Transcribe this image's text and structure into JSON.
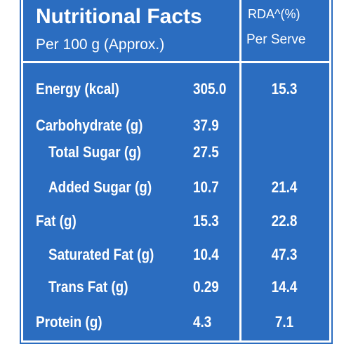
{
  "header": {
    "title": "Nutritional Facts",
    "subtitle": "Per 100 g (Approx.)",
    "rda_title": "RDA^(%)",
    "rda_subtitle": "Per Serve"
  },
  "table": {
    "rows": [
      {
        "name": "Energy (kcal)",
        "value": "305.0",
        "rda": "15.3"
      },
      {
        "name": "Carbohydrate (g)",
        "value": "37.9"
      },
      {
        "name": "Total Sugar (g)",
        "value": "27.5"
      },
      {
        "name": "Added Sugar (g)",
        "value": "10.7",
        "rda": "21.4"
      },
      {
        "name": "Fat (g)",
        "value": "15.3",
        "rda": "22.8"
      },
      {
        "name": "Saturated Fat (g)",
        "value": "10.4",
        "rda": "47.3"
      },
      {
        "name": "Trans Fat (g)",
        "value": "0.29",
        "rda": "14.4"
      },
      {
        "name": "Protein (g)",
        "value": "4.3",
        "rda": "7.1"
      }
    ]
  }
}
